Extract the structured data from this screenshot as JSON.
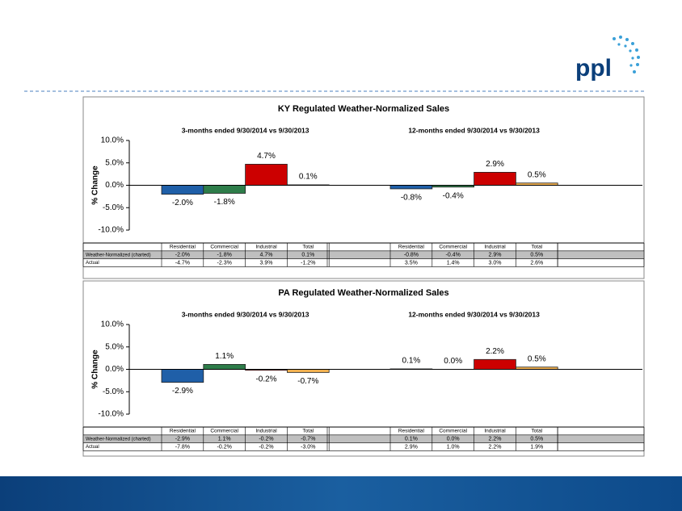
{
  "logo": "ppl",
  "chart_data": [
    {
      "type": "bar",
      "title": "KY Regulated Weather-Normalized Sales",
      "y_label": "% Change",
      "categories": [
        "Residential",
        "Commercial",
        "Industrial",
        "Total"
      ],
      "colors": [
        "#1f5fa8",
        "#2e7d4a",
        "#cc0000",
        "#f0b050"
      ],
      "ylim": [
        -10,
        10
      ],
      "yticks": [
        {
          "value": -10,
          "label": "-10.0%"
        },
        {
          "value": -5,
          "label": "-5.0%"
        },
        {
          "value": 0,
          "label": "0.0%"
        },
        {
          "value": 5,
          "label": "5.0%"
        },
        {
          "value": 10,
          "label": "10.0%"
        }
      ],
      "row_labels": [
        "Weather-Normalized (charted)",
        "Actual"
      ],
      "groups": [
        {
          "title": "3-months ended 9/30/2014 vs 9/30/2013",
          "values": [
            -2.0,
            -1.8,
            4.7,
            0.1
          ],
          "value_labels": [
            "-2.0%",
            "-1.8%",
            "4.7%",
            "0.1%"
          ],
          "actual": [
            "-4.7%",
            "-2.3%",
            "3.9%",
            "-1.2%"
          ]
        },
        {
          "title": "12-months ended 9/30/2014 vs 9/30/2013",
          "values": [
            -0.8,
            -0.4,
            2.9,
            0.5
          ],
          "value_labels": [
            "-0.8%",
            "-0.4%",
            "2.9%",
            "0.5%"
          ],
          "actual": [
            "3.5%",
            "1.4%",
            "3.0%",
            "2.6%"
          ]
        }
      ]
    },
    {
      "type": "bar",
      "title": "PA Regulated Weather-Normalized Sales",
      "y_label": "% Change",
      "categories": [
        "Residential",
        "Commercial",
        "Industrial",
        "Total"
      ],
      "colors": [
        "#1f5fa8",
        "#2e7d4a",
        "#cc0000",
        "#f0b050"
      ],
      "ylim": [
        -10,
        10
      ],
      "yticks": [
        {
          "value": -10,
          "label": "-10.0%"
        },
        {
          "value": -5,
          "label": "-5.0%"
        },
        {
          "value": 0,
          "label": "0.0%"
        },
        {
          "value": 5,
          "label": "5.0%"
        },
        {
          "value": 10,
          "label": "10.0%"
        }
      ],
      "row_labels": [
        "Weather-Normalized (charted)",
        "Actual"
      ],
      "groups": [
        {
          "title": "3-months ended 9/30/2014 vs 9/30/2013",
          "values": [
            -2.9,
            1.1,
            -0.2,
            -0.7
          ],
          "value_labels": [
            "-2.9%",
            "1.1%",
            "-0.2%",
            "-0.7%"
          ],
          "actual": [
            "-7.8%",
            "-0.2%",
            "-0.2%",
            "-3.0%"
          ]
        },
        {
          "title": "12-months ended 9/30/2014 vs 9/30/2013",
          "values": [
            0.1,
            0.0,
            2.2,
            0.5
          ],
          "value_labels": [
            "0.1%",
            "0.0%",
            "2.2%",
            "0.5%"
          ],
          "actual": [
            "2.9%",
            "1.0%",
            "2.2%",
            "1.9%"
          ]
        }
      ]
    }
  ]
}
